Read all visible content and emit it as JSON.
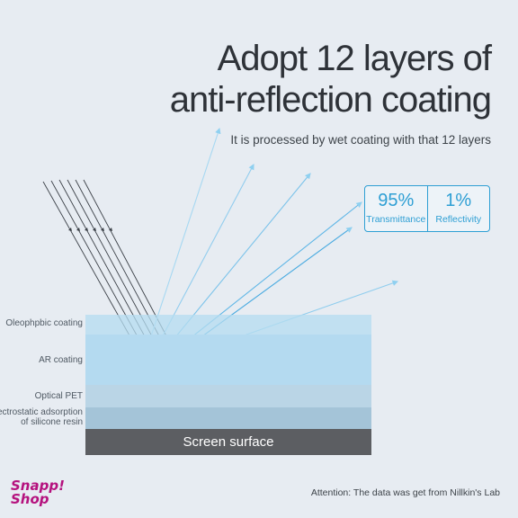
{
  "title": {
    "line1": "Adopt 12 layers of",
    "line2": "anti-reflection coating"
  },
  "subtitle": "It is processed by wet coating with that 12 layers",
  "stats": [
    {
      "value": "95%",
      "label": "Transmittance"
    },
    {
      "value": "1%",
      "label": "Reflectivity"
    }
  ],
  "layers": {
    "oleophobic": "Oleophpbic coating",
    "ar": "AR coating",
    "pet": "Optical PET",
    "silicone_line1": "Electrostatic adsorption",
    "silicone_line2": "of silicone resin",
    "screen": "Screen surface"
  },
  "logo": {
    "line1": "Snapp!",
    "line2": "Shop"
  },
  "attention": "Attention: The data was get from Nillkin's Lab",
  "colors": {
    "accent": "#2e9fd4",
    "brand": "#b5127e",
    "title": "#2e3238",
    "screen": "#5c5e62"
  }
}
